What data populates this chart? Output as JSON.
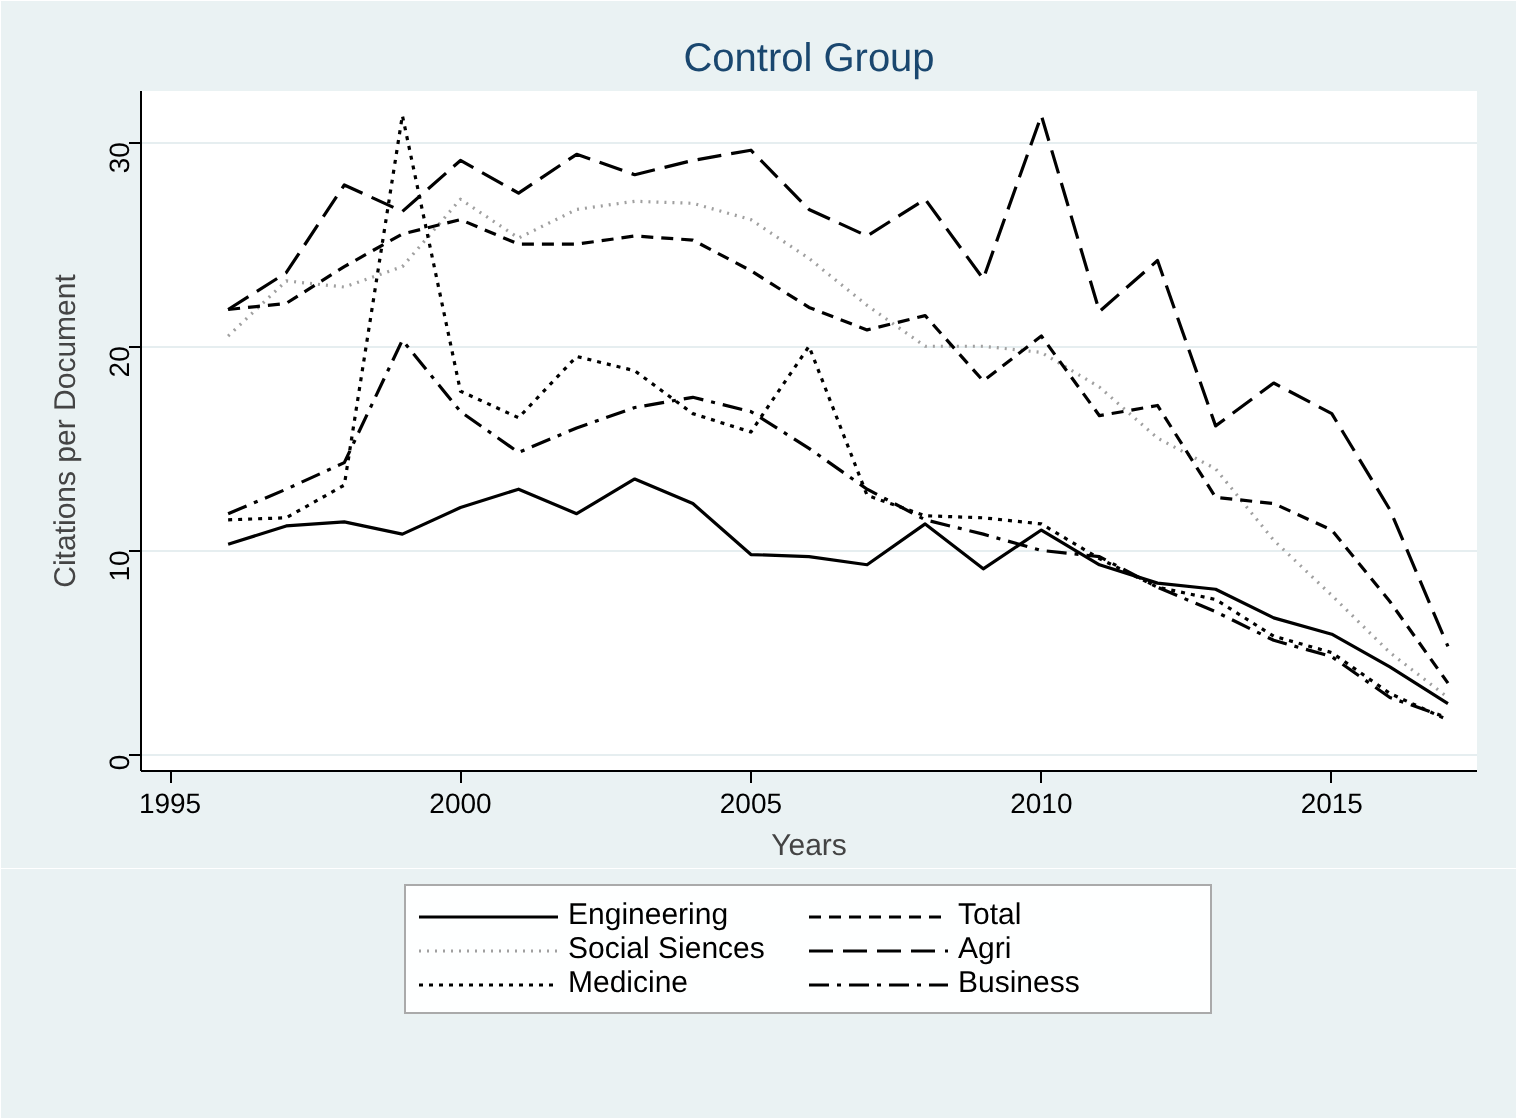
{
  "chart_data": {
    "type": "line",
    "title": "Control Group",
    "xlabel": "Years",
    "ylabel": "Citations per Document",
    "x": [
      1996,
      1997,
      1998,
      1999,
      2000,
      2001,
      2002,
      2003,
      2004,
      2005,
      2006,
      2007,
      2008,
      2009,
      2010,
      2011,
      2012,
      2013,
      2014,
      2015,
      2016,
      2017
    ],
    "xlim": [
      1994.5,
      2017.5
    ],
    "xticks": [
      1995,
      2000,
      2005,
      2010,
      2015
    ],
    "ylim": [
      -0.8,
      32.5
    ],
    "yticks": [
      0,
      10,
      20,
      30
    ],
    "grid": "y",
    "legend": "bottom",
    "marker": "none",
    "series": [
      {
        "name": "Engineering",
        "color": "#000000",
        "line_style": "solid",
        "values": [
          10.3,
          11.2,
          11.4,
          10.8,
          12.1,
          13.0,
          11.8,
          13.5,
          12.3,
          9.8,
          9.7,
          9.3,
          11.3,
          9.1,
          11.0,
          9.3,
          8.4,
          8.1,
          6.7,
          5.9,
          4.3,
          2.5
        ]
      },
      {
        "name": "Social Siences",
        "color": "#a0a0a0",
        "line_style": "dotted",
        "values": [
          20.5,
          23.2,
          22.9,
          23.9,
          27.2,
          25.3,
          26.7,
          27.1,
          27.0,
          26.2,
          24.3,
          22.0,
          20.0,
          20.0,
          19.7,
          18.0,
          15.5,
          14.0,
          10.5,
          7.8,
          5.0,
          2.8
        ]
      },
      {
        "name": "Medicine",
        "color": "#000000",
        "line_style": "dotted",
        "values": [
          11.5,
          11.6,
          13.2,
          31.3,
          17.8,
          16.5,
          19.5,
          18.8,
          16.7,
          15.8,
          20.0,
          12.7,
          11.7,
          11.6,
          11.3,
          9.6,
          8.2,
          7.6,
          5.8,
          5.0,
          3.0,
          1.7
        ]
      },
      {
        "name": "Total",
        "color": "#000000",
        "line_style": "dashed",
        "values": [
          21.8,
          22.1,
          23.9,
          25.5,
          26.2,
          25.0,
          25.0,
          25.4,
          25.2,
          23.7,
          21.9,
          20.8,
          21.5,
          18.3,
          20.5,
          16.6,
          17.1,
          12.6,
          12.3,
          11.0,
          7.5,
          3.5
        ]
      },
      {
        "name": "Agri",
        "color": "#000000",
        "line_style": "longdash",
        "values": [
          21.8,
          23.6,
          27.9,
          26.6,
          29.1,
          27.5,
          29.4,
          28.4,
          29.1,
          29.6,
          26.7,
          25.4,
          27.2,
          23.3,
          31.3,
          21.7,
          24.2,
          16.1,
          18.2,
          16.7,
          12.0,
          5.3
        ]
      },
      {
        "name": "Business",
        "color": "#000000",
        "line_style": "dashdot",
        "values": [
          11.8,
          13.0,
          14.3,
          20.3,
          16.8,
          14.8,
          16.0,
          17.0,
          17.5,
          16.8,
          15.0,
          13.0,
          11.5,
          10.8,
          10.0,
          9.7,
          8.2,
          7.0,
          5.6,
          4.8,
          2.8,
          1.8
        ]
      }
    ]
  }
}
